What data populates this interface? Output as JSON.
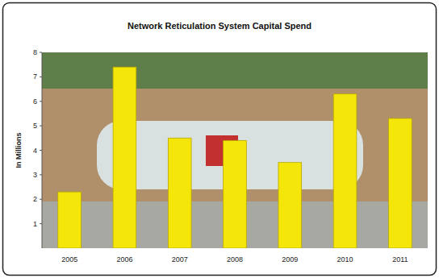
{
  "chart_data": {
    "type": "bar",
    "title": "Network Reticulation System Capital Spend",
    "y_label": "In Millions",
    "categories": [
      "2005",
      "2006",
      "2007",
      "2008",
      "2009",
      "2010",
      "2011"
    ],
    "values": [
      2.3,
      7.4,
      4.5,
      4.4,
      3.5,
      6.3,
      5.3
    ],
    "color": "#f5e60a",
    "ylim": [
      0,
      8
    ],
    "yticks": [
      1,
      2,
      3,
      4,
      5,
      6,
      7,
      8
    ],
    "grid": false
  }
}
